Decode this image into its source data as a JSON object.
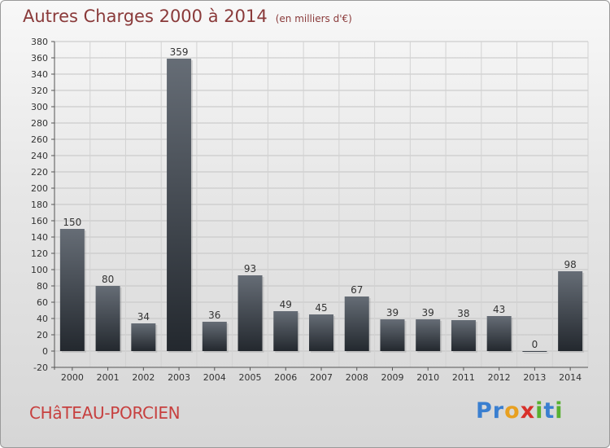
{
  "header": {
    "title": "Autres Charges 2000 à 2014",
    "unit": "(en milliers d'€)"
  },
  "footer": {
    "city": "CHâTEAU-PORCIEN",
    "logo_letters": [
      {
        "ch": "P",
        "color": "#3a7fd0"
      },
      {
        "ch": "r",
        "color": "#3a7fd0"
      },
      {
        "ch": "o",
        "color": "#e8a020"
      },
      {
        "ch": "x",
        "color": "#d8302a"
      },
      {
        "ch": "i",
        "color": "#58b030"
      },
      {
        "ch": "t",
        "color": "#3a7fd0"
      },
      {
        "ch": "i",
        "color": "#58b030"
      }
    ]
  },
  "chart_data": {
    "type": "bar",
    "title": "Autres Charges 2000 à 2014",
    "subtitle": "(en milliers d'€)",
    "categories": [
      "2000",
      "2001",
      "2002",
      "2003",
      "2004",
      "2005",
      "2006",
      "2007",
      "2008",
      "2009",
      "2010",
      "2011",
      "2012",
      "2013",
      "2014"
    ],
    "values": [
      150,
      80,
      34,
      359,
      36,
      93,
      49,
      45,
      67,
      39,
      39,
      38,
      43,
      0,
      98
    ],
    "ylim": [
      -20,
      380
    ],
    "ytick_step": 20,
    "grid": true,
    "bar_color": "#3d434b"
  }
}
